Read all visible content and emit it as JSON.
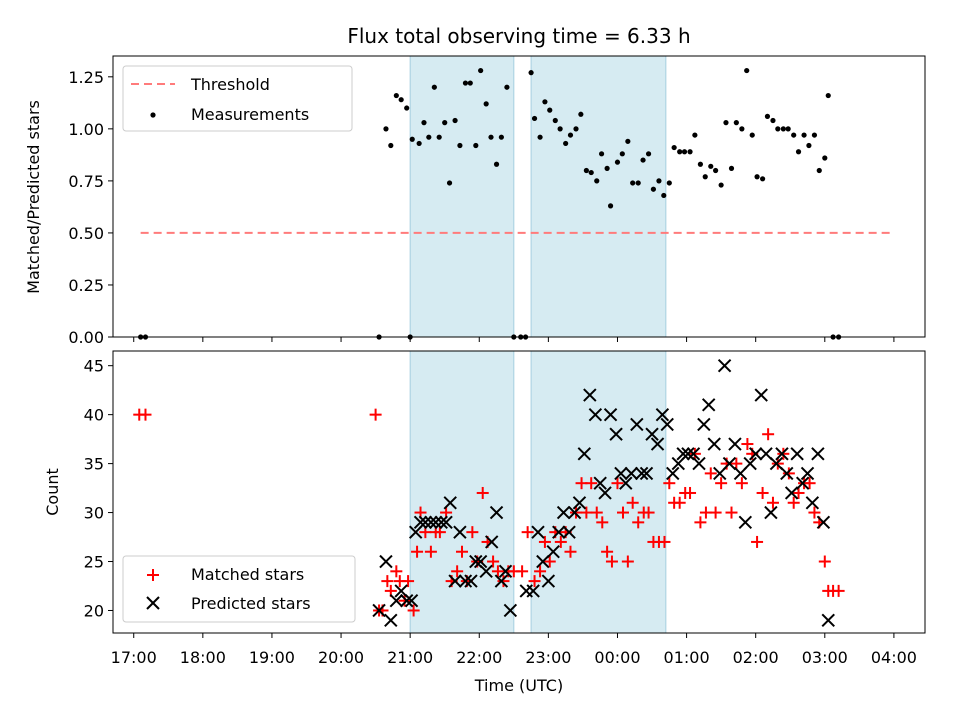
{
  "title": "Flux total observing time = 6.33 h",
  "chart_data": [
    {
      "type": "scatter",
      "name": "ratio-panel",
      "ylabel": "Matched/Predicted stars",
      "xlim": [
        -0.3,
        11.45
      ],
      "ylim": [
        0,
        1.35
      ],
      "yticks": [
        0.0,
        0.25,
        0.5,
        0.75,
        1.0,
        1.25
      ],
      "ytick_labels": [
        "0.00",
        "0.25",
        "0.50",
        "0.75",
        "1.00",
        "1.25"
      ],
      "spans": [
        [
          4.0,
          5.5
        ],
        [
          5.75,
          7.7
        ]
      ],
      "threshold": {
        "label": "Threshold",
        "value": 0.5,
        "x": [
          0.1,
          10.95
        ],
        "color": "#ff7b7b"
      },
      "measurements": {
        "label": "Measurements",
        "points": [
          [
            0.1,
            0
          ],
          [
            0.17,
            0
          ],
          [
            3.55,
            0
          ],
          [
            3.65,
            1.0
          ],
          [
            3.72,
            0.92
          ],
          [
            3.8,
            1.16
          ],
          [
            3.87,
            1.14
          ],
          [
            3.95,
            1.1
          ],
          [
            4.0,
            0
          ],
          [
            4.03,
            0.95
          ],
          [
            4.13,
            0.93
          ],
          [
            4.2,
            1.03
          ],
          [
            4.27,
            0.96
          ],
          [
            4.35,
            1.2
          ],
          [
            4.42,
            0.96
          ],
          [
            4.5,
            1.03
          ],
          [
            4.57,
            0.74
          ],
          [
            4.65,
            1.04
          ],
          [
            4.72,
            0.92
          ],
          [
            4.8,
            1.22
          ],
          [
            4.87,
            1.22
          ],
          [
            4.95,
            0.92
          ],
          [
            5.02,
            1.28
          ],
          [
            5.1,
            1.12
          ],
          [
            5.17,
            0.96
          ],
          [
            5.25,
            0.83
          ],
          [
            5.32,
            0.96
          ],
          [
            5.4,
            1.2
          ],
          [
            5.5,
            0
          ],
          [
            5.6,
            0
          ],
          [
            5.67,
            0
          ],
          [
            5.75,
            1.27
          ],
          [
            5.8,
            1.05
          ],
          [
            5.88,
            0.96
          ],
          [
            5.95,
            1.13
          ],
          [
            6.02,
            1.09
          ],
          [
            6.1,
            1.04
          ],
          [
            6.17,
            1.0
          ],
          [
            6.25,
            0.93
          ],
          [
            6.32,
            0.97
          ],
          [
            6.4,
            1.0
          ],
          [
            6.47,
            1.07
          ],
          [
            6.55,
            0.8
          ],
          [
            6.62,
            0.79
          ],
          [
            6.7,
            0.75
          ],
          [
            6.77,
            0.88
          ],
          [
            6.85,
            0.81
          ],
          [
            6.9,
            0.63
          ],
          [
            7.0,
            0.84
          ],
          [
            7.07,
            0.88
          ],
          [
            7.15,
            0.94
          ],
          [
            7.22,
            0.74
          ],
          [
            7.3,
            0.74
          ],
          [
            7.37,
            0.85
          ],
          [
            7.45,
            0.88
          ],
          [
            7.52,
            0.71
          ],
          [
            7.6,
            0.75
          ],
          [
            7.67,
            0.68
          ],
          [
            7.75,
            0.74
          ],
          [
            7.82,
            0.91
          ],
          [
            7.9,
            0.89
          ],
          [
            7.97,
            0.89
          ],
          [
            8.05,
            0.89
          ],
          [
            8.12,
            0.97
          ],
          [
            8.2,
            0.83
          ],
          [
            8.27,
            0.77
          ],
          [
            8.35,
            0.82
          ],
          [
            8.42,
            0.8
          ],
          [
            8.5,
            0.73
          ],
          [
            8.57,
            1.03
          ],
          [
            8.65,
            0.81
          ],
          [
            8.72,
            1.03
          ],
          [
            8.8,
            1.0
          ],
          [
            8.87,
            1.28
          ],
          [
            8.95,
            0.97
          ],
          [
            9.02,
            0.77
          ],
          [
            9.1,
            0.76
          ],
          [
            9.17,
            1.06
          ],
          [
            9.25,
            1.04
          ],
          [
            9.32,
            1.0
          ],
          [
            9.4,
            1.0
          ],
          [
            9.47,
            1.0
          ],
          [
            9.55,
            0.97
          ],
          [
            9.62,
            0.89
          ],
          [
            9.7,
            0.97
          ],
          [
            9.77,
            0.92
          ],
          [
            9.85,
            0.97
          ],
          [
            9.92,
            0.8
          ],
          [
            10.0,
            0.86
          ],
          [
            10.05,
            1.16
          ],
          [
            10.12,
            0
          ],
          [
            10.2,
            0
          ]
        ]
      }
    },
    {
      "type": "scatter",
      "name": "count-panel",
      "ylabel": "Count",
      "xlabel": "Time (UTC)",
      "xlim": [
        -0.3,
        11.45
      ],
      "ylim": [
        17.7,
        46.5
      ],
      "yticks": [
        20,
        25,
        30,
        35,
        40,
        45
      ],
      "ytick_labels": [
        "20",
        "25",
        "30",
        "35",
        "40",
        "45"
      ],
      "xticks": [
        0,
        1,
        2,
        3,
        4,
        5,
        6,
        7,
        8,
        9,
        10,
        11
      ],
      "xtick_labels": [
        "17:00",
        "18:00",
        "19:00",
        "20:00",
        "21:00",
        "22:00",
        "23:00",
        "00:00",
        "01:00",
        "02:00",
        "03:00",
        "04:00"
      ],
      "spans": [
        [
          4.0,
          5.5
        ],
        [
          5.75,
          7.7
        ]
      ],
      "series": [
        {
          "name": "Matched stars",
          "marker": "plus",
          "color": "#ff0000",
          "points": [
            [
              0.08,
              40
            ],
            [
              0.17,
              40
            ],
            [
              3.5,
              40
            ],
            [
              3.55,
              20
            ],
            [
              3.6,
              20
            ],
            [
              3.67,
              23
            ],
            [
              3.72,
              22
            ],
            [
              3.8,
              24
            ],
            [
              3.85,
              23
            ],
            [
              3.92,
              21
            ],
            [
              3.97,
              23
            ],
            [
              4.05,
              20
            ],
            [
              4.1,
              26
            ],
            [
              4.15,
              30
            ],
            [
              4.22,
              28
            ],
            [
              4.3,
              26
            ],
            [
              4.37,
              28
            ],
            [
              4.43,
              28
            ],
            [
              4.52,
              30
            ],
            [
              4.6,
              23
            ],
            [
              4.68,
              24
            ],
            [
              4.75,
              26
            ],
            [
              4.82,
              23
            ],
            [
              4.9,
              28
            ],
            [
              4.97,
              25
            ],
            [
              5.05,
              32
            ],
            [
              5.12,
              27
            ],
            [
              5.2,
              25
            ],
            [
              5.27,
              24
            ],
            [
              5.35,
              23
            ],
            [
              5.42,
              24
            ],
            [
              5.5,
              24
            ],
            [
              5.62,
              24
            ],
            [
              5.7,
              28
            ],
            [
              5.8,
              23
            ],
            [
              5.88,
              24
            ],
            [
              5.95,
              27
            ],
            [
              6.02,
              25
            ],
            [
              6.1,
              28
            ],
            [
              6.18,
              27
            ],
            [
              6.25,
              28
            ],
            [
              6.32,
              26
            ],
            [
              6.4,
              30
            ],
            [
              6.48,
              33
            ],
            [
              6.55,
              30
            ],
            [
              6.62,
              33
            ],
            [
              6.7,
              30
            ],
            [
              6.78,
              29
            ],
            [
              6.85,
              26
            ],
            [
              6.92,
              25
            ],
            [
              7.0,
              33
            ],
            [
              7.08,
              30
            ],
            [
              7.15,
              25
            ],
            [
              7.22,
              31
            ],
            [
              7.3,
              29
            ],
            [
              7.38,
              30
            ],
            [
              7.45,
              30
            ],
            [
              7.52,
              27
            ],
            [
              7.6,
              27
            ],
            [
              7.68,
              27
            ],
            [
              7.75,
              33
            ],
            [
              7.82,
              31
            ],
            [
              7.9,
              31
            ],
            [
              7.98,
              32
            ],
            [
              8.05,
              32
            ],
            [
              8.12,
              36
            ],
            [
              8.2,
              29
            ],
            [
              8.28,
              30
            ],
            [
              8.35,
              34
            ],
            [
              8.42,
              30
            ],
            [
              8.5,
              33
            ],
            [
              8.58,
              35
            ],
            [
              8.65,
              30
            ],
            [
              8.72,
              35
            ],
            [
              8.8,
              33
            ],
            [
              8.88,
              37
            ],
            [
              8.95,
              36
            ],
            [
              9.02,
              27
            ],
            [
              9.1,
              32
            ],
            [
              9.18,
              38
            ],
            [
              9.25,
              31
            ],
            [
              9.32,
              35
            ],
            [
              9.4,
              36
            ],
            [
              9.48,
              34
            ],
            [
              9.55,
              31
            ],
            [
              9.62,
              32
            ],
            [
              9.7,
              33
            ],
            [
              9.78,
              33
            ],
            [
              9.85,
              30
            ],
            [
              9.92,
              29
            ],
            [
              10.0,
              25
            ],
            [
              10.05,
              22
            ],
            [
              10.12,
              22
            ],
            [
              10.2,
              22
            ]
          ]
        },
        {
          "name": "Predicted stars",
          "marker": "x",
          "color": "#000000",
          "points": [
            [
              3.55,
              20
            ],
            [
              3.65,
              25
            ],
            [
              3.72,
              19
            ],
            [
              3.8,
              21
            ],
            [
              3.87,
              22
            ],
            [
              3.95,
              21
            ],
            [
              4.02,
              21
            ],
            [
              4.08,
              28
            ],
            [
              4.15,
              29
            ],
            [
              4.22,
              29
            ],
            [
              4.3,
              29
            ],
            [
              4.37,
              29
            ],
            [
              4.45,
              29
            ],
            [
              4.52,
              29
            ],
            [
              4.58,
              31
            ],
            [
              4.65,
              23
            ],
            [
              4.72,
              28
            ],
            [
              4.8,
              23
            ],
            [
              4.88,
              23
            ],
            [
              4.95,
              25
            ],
            [
              5.02,
              25
            ],
            [
              5.1,
              24
            ],
            [
              5.18,
              27
            ],
            [
              5.25,
              30
            ],
            [
              5.32,
              23
            ],
            [
              5.38,
              24
            ],
            [
              5.45,
              20
            ],
            [
              5.68,
              22
            ],
            [
              5.78,
              22
            ],
            [
              5.85,
              28
            ],
            [
              5.92,
              25
            ],
            [
              6.0,
              23
            ],
            [
              6.07,
              26
            ],
            [
              6.15,
              28
            ],
            [
              6.22,
              30
            ],
            [
              6.3,
              28
            ],
            [
              6.38,
              30
            ],
            [
              6.45,
              31
            ],
            [
              6.52,
              36
            ],
            [
              6.6,
              42
            ],
            [
              6.68,
              40
            ],
            [
              6.75,
              33
            ],
            [
              6.82,
              32
            ],
            [
              6.9,
              40
            ],
            [
              6.98,
              38
            ],
            [
              7.05,
              34
            ],
            [
              7.12,
              33
            ],
            [
              7.2,
              34
            ],
            [
              7.28,
              39
            ],
            [
              7.35,
              34
            ],
            [
              7.42,
              34
            ],
            [
              7.5,
              38
            ],
            [
              7.58,
              37
            ],
            [
              7.65,
              40
            ],
            [
              7.72,
              39
            ],
            [
              7.8,
              34
            ],
            [
              7.88,
              35
            ],
            [
              7.95,
              36
            ],
            [
              8.02,
              36
            ],
            [
              8.1,
              36
            ],
            [
              8.18,
              35
            ],
            [
              8.25,
              39
            ],
            [
              8.32,
              41
            ],
            [
              8.4,
              37
            ],
            [
              8.48,
              34
            ],
            [
              8.55,
              45
            ],
            [
              8.62,
              35
            ],
            [
              8.7,
              37
            ],
            [
              8.78,
              34
            ],
            [
              8.85,
              29
            ],
            [
              8.92,
              35
            ],
            [
              9.0,
              36
            ],
            [
              9.08,
              42
            ],
            [
              9.15,
              36
            ],
            [
              9.22,
              30
            ],
            [
              9.3,
              35
            ],
            [
              9.38,
              36
            ],
            [
              9.45,
              34
            ],
            [
              9.52,
              32
            ],
            [
              9.6,
              36
            ],
            [
              9.68,
              33
            ],
            [
              9.75,
              34
            ],
            [
              9.82,
              31
            ],
            [
              9.9,
              36
            ],
            [
              9.98,
              29
            ],
            [
              10.05,
              19
            ]
          ]
        }
      ]
    }
  ]
}
